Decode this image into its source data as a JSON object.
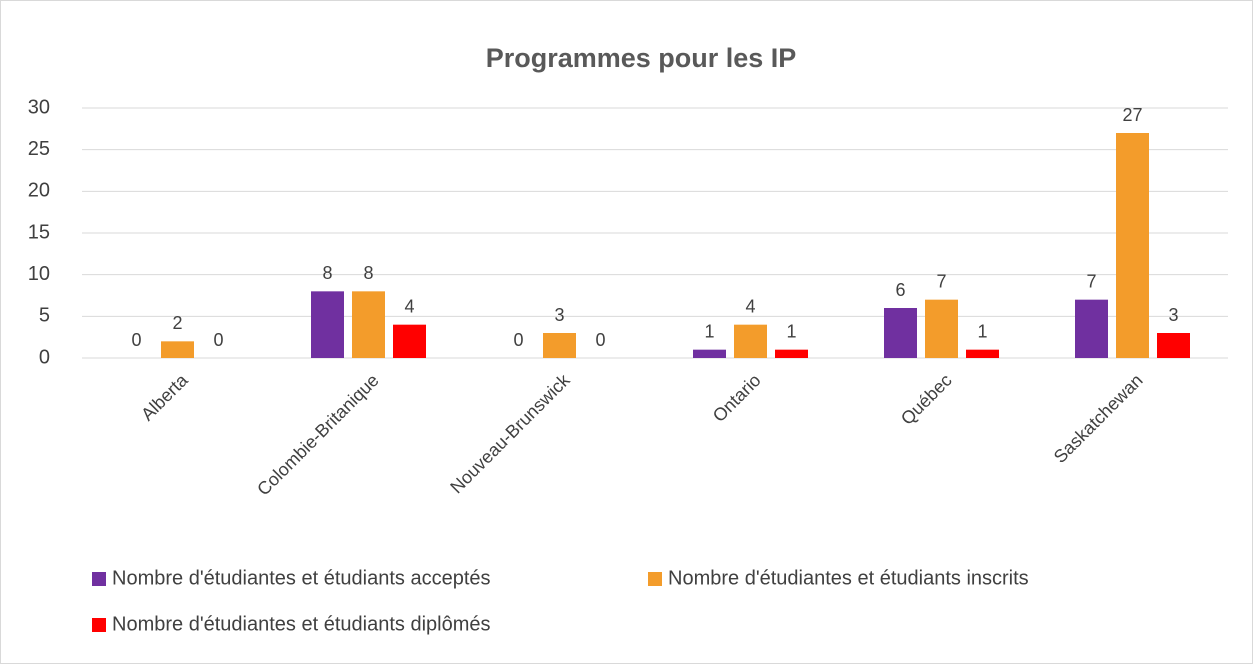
{
  "chart_data": {
    "type": "bar",
    "title": "Programmes pour les IP",
    "categories": [
      "Alberta",
      "Colombie-Britanique",
      "Nouveau-Brunswick",
      "Ontario",
      "Québec",
      "Saskatchewan"
    ],
    "series": [
      {
        "name": "Nombre d'étudiantes et étudiants acceptés",
        "color": "#7030a0",
        "values": [
          0,
          8,
          0,
          1,
          6,
          7
        ]
      },
      {
        "name": "Nombre d'étudiantes et étudiants inscrits",
        "color": "#f39c2b",
        "values": [
          2,
          8,
          3,
          4,
          7,
          27
        ]
      },
      {
        "name": "Nombre d'étudiantes et étudiants diplômés",
        "color": "#ff0000",
        "values": [
          0,
          4,
          0,
          1,
          1,
          3
        ]
      }
    ],
    "ylim": [
      0,
      30
    ],
    "yticks": [
      0,
      5,
      10,
      15,
      20,
      25,
      30
    ],
    "grid": true,
    "legend": "bottom"
  }
}
